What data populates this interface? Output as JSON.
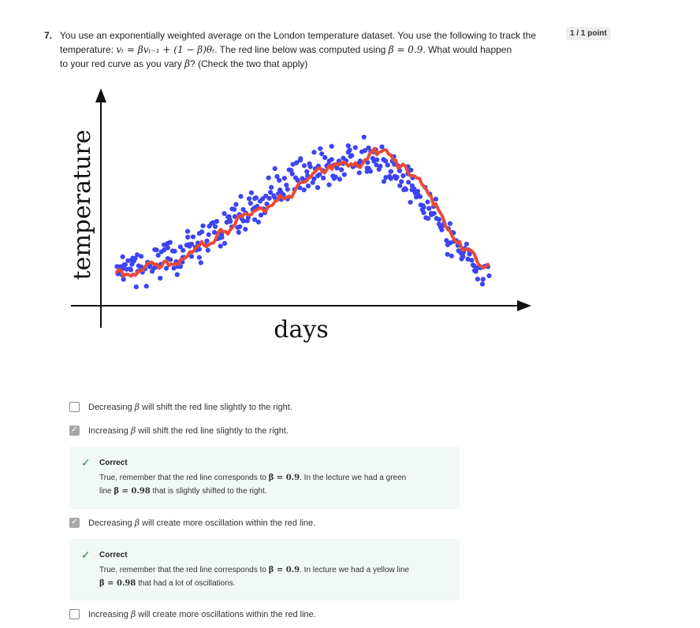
{
  "question": {
    "number": "7.",
    "line1": "You use an exponentially weighted average on the London temperature dataset. You use the following to track the",
    "line2_prefix": "temperature: ",
    "formula": "vₜ = βvₜ₋₁ + (1 − β)θₜ",
    "line2_mid": ". The red line below was computed using ",
    "beta_value": "β = 0.9",
    "line2_suffix": ". What would happen",
    "line3_prefix": "to your red curve as you vary ",
    "line3_beta": "β",
    "line3_suffix": "? (Check the two that apply)",
    "score": "1 / 1 point"
  },
  "figure": {
    "ylabel": "temperature",
    "xlabel": "days",
    "colors": {
      "dots": "#3d44f2",
      "line": "#e84a37",
      "axis": "#111111"
    }
  },
  "options": [
    {
      "pre": "Decreasing ",
      "beta": "β",
      "post": " will shift the red line slightly to the right.",
      "checked": false
    },
    {
      "pre": "Increasing ",
      "beta": "β",
      "post": " will shift the red line slightly to the right.",
      "checked": true
    },
    {
      "pre": "Decreasing ",
      "beta": "β",
      "post": " will create more oscillation within the red line.",
      "checked": true
    },
    {
      "pre": "Increasing ",
      "beta": "β",
      "post": " will create more oscillations within the red line.",
      "checked": false
    }
  ],
  "feedback": [
    {
      "label": "Correct",
      "l1_pre": "True, remember that the red line corresponds to ",
      "l1_math": "β = 0.9",
      "l1_post": ". In the lecture we had a green",
      "l2_pre": "line ",
      "l2_math": "β = 0.98",
      "l2_post": " that is slightly shifted to the right."
    },
    {
      "label": "Correct",
      "l1_pre": "True, remember that the red line corresponds to ",
      "l1_math": "β = 0.9",
      "l1_post": ". In lecture we had a yellow line",
      "l2_pre": "",
      "l2_math": "β = 0.98",
      "l2_post": " that had a lot of oscillations."
    }
  ]
}
